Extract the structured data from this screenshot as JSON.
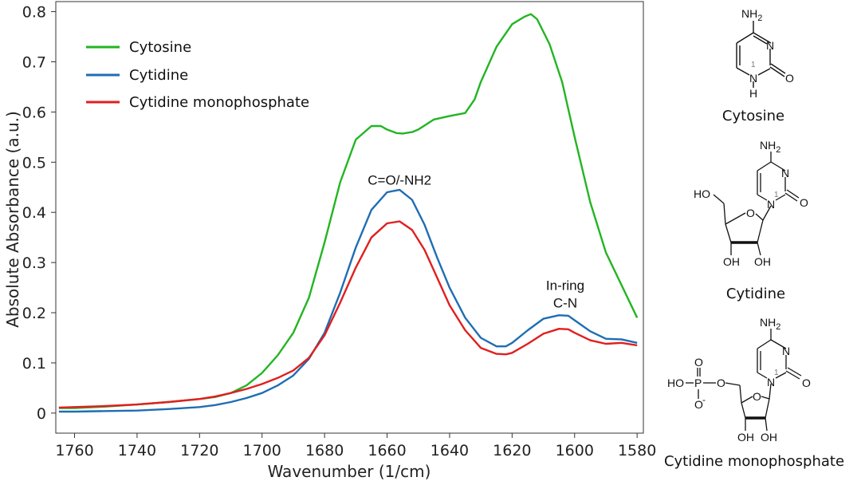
{
  "chart_data": {
    "type": "line",
    "xlabel": "Wavenumber (1/cm)",
    "ylabel": "Absolute Absorbance (a.u.)",
    "xlim": [
      1766,
      1578
    ],
    "ylim": [
      -0.04,
      0.82
    ],
    "x_ticks": [
      1760,
      1740,
      1720,
      1700,
      1680,
      1660,
      1640,
      1620,
      1600,
      1580
    ],
    "y_ticks": [
      0,
      0.1,
      0.2,
      0.3,
      0.4,
      0.5,
      0.6,
      0.7,
      0.8
    ],
    "x_tick_labels": [
      "1760",
      "1740",
      "1720",
      "1700",
      "1680",
      "1660",
      "1640",
      "1620",
      "1600",
      "1580"
    ],
    "y_tick_labels": [
      "0",
      "0.1",
      "0.2",
      "0.3",
      "0.4",
      "0.5",
      "0.6",
      "0.7",
      "0.8"
    ],
    "legend": {
      "placement": "top-left",
      "entries": [
        "Cytosine",
        "Cytidine",
        "Cytidine monophosphate"
      ]
    },
    "series": [
      {
        "name": "Cytosine",
        "color": "#22b522",
        "x": [
          1765,
          1760,
          1750,
          1740,
          1730,
          1720,
          1715,
          1710,
          1705,
          1700,
          1695,
          1690,
          1685,
          1680,
          1675,
          1670,
          1665,
          1662,
          1660,
          1657,
          1655,
          1652,
          1650,
          1645,
          1640,
          1635,
          1632,
          1630,
          1625,
          1620,
          1616,
          1614,
          1612,
          1608,
          1604,
          1600,
          1595,
          1590,
          1585,
          1580
        ],
        "values": [
          0.01,
          0.01,
          0.013,
          0.017,
          0.022,
          0.028,
          0.032,
          0.04,
          0.055,
          0.08,
          0.115,
          0.16,
          0.23,
          0.34,
          0.46,
          0.545,
          0.572,
          0.572,
          0.565,
          0.558,
          0.557,
          0.56,
          0.565,
          0.585,
          0.592,
          0.598,
          0.625,
          0.66,
          0.73,
          0.775,
          0.79,
          0.795,
          0.785,
          0.735,
          0.66,
          0.55,
          0.42,
          0.32,
          0.255,
          0.19
        ]
      },
      {
        "name": "Cytidine",
        "color": "#1f6db3",
        "x": [
          1765,
          1760,
          1750,
          1740,
          1730,
          1720,
          1715,
          1710,
          1705,
          1700,
          1695,
          1690,
          1685,
          1680,
          1675,
          1670,
          1665,
          1660,
          1656,
          1652,
          1648,
          1644,
          1640,
          1635,
          1630,
          1625,
          1622,
          1620,
          1615,
          1610,
          1605,
          1602,
          1600,
          1595,
          1590,
          1585,
          1580
        ],
        "values": [
          0.003,
          0.003,
          0.004,
          0.005,
          0.008,
          0.012,
          0.016,
          0.022,
          0.03,
          0.04,
          0.055,
          0.075,
          0.108,
          0.16,
          0.24,
          0.33,
          0.405,
          0.44,
          0.445,
          0.425,
          0.375,
          0.31,
          0.25,
          0.19,
          0.15,
          0.133,
          0.133,
          0.14,
          0.165,
          0.188,
          0.195,
          0.194,
          0.185,
          0.163,
          0.148,
          0.147,
          0.14
        ]
      },
      {
        "name": "Cytidine monophosphate",
        "color": "#e01f1f",
        "x": [
          1765,
          1760,
          1750,
          1740,
          1730,
          1720,
          1715,
          1710,
          1705,
          1700,
          1695,
          1690,
          1685,
          1680,
          1675,
          1670,
          1665,
          1660,
          1656,
          1652,
          1648,
          1644,
          1640,
          1635,
          1630,
          1625,
          1622,
          1620,
          1615,
          1610,
          1605,
          1602,
          1600,
          1595,
          1590,
          1585,
          1580
        ],
        "values": [
          0.011,
          0.012,
          0.014,
          0.017,
          0.022,
          0.028,
          0.033,
          0.04,
          0.048,
          0.058,
          0.07,
          0.085,
          0.11,
          0.155,
          0.22,
          0.29,
          0.35,
          0.378,
          0.382,
          0.365,
          0.325,
          0.27,
          0.215,
          0.165,
          0.13,
          0.118,
          0.117,
          0.12,
          0.138,
          0.158,
          0.168,
          0.167,
          0.16,
          0.145,
          0.138,
          0.14,
          0.135
        ]
      }
    ],
    "annotations": [
      {
        "text": "C=O/-NH2",
        "x": 1656,
        "y": 0.455
      },
      {
        "text": "In-ring",
        "x": 1603,
        "y": 0.245
      },
      {
        "text": "C-N",
        "x": 1603,
        "y": 0.21
      }
    ]
  },
  "molecules": {
    "cytosine": {
      "caption": "Cytosine",
      "nh2": "NH2",
      "n_label": "N",
      "nh_n": "N",
      "nh_h": "H",
      "o_label": "O",
      "pos_label": "1"
    },
    "cytidine": {
      "caption": "Cytidine",
      "nh2": "NH2",
      "n_label": "N",
      "n1_label": "N",
      "o_label": "O",
      "ring_o": "O",
      "ho_label": "HO",
      "oh_left": "OH",
      "oh_right": "OH",
      "pos_label": "1"
    },
    "cmp": {
      "caption": "Cytidine monophosphate",
      "nh2": "NH2",
      "n_label": "N",
      "n1_label": "N",
      "o_label": "O",
      "ring_o": "O",
      "ho_label": "HO",
      "p_label": "P",
      "po_top": "O",
      "po_bottom": "O",
      "po_bottom_charge": "-",
      "ester_o": "O",
      "oh_left": "OH",
      "oh_right": "OH",
      "pos_label": "1"
    }
  }
}
